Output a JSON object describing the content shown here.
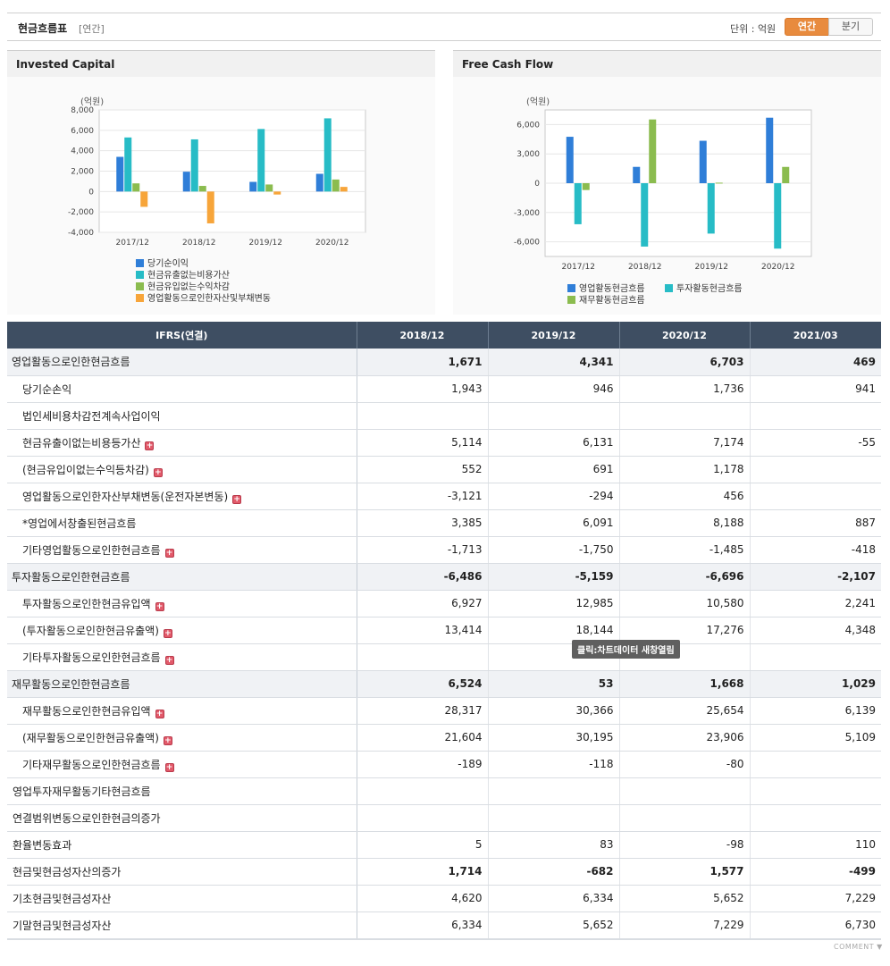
{
  "header": {
    "title": "현금흐름표",
    "subtitle": "[연간]",
    "unit": "단위 : 억원",
    "toggle_annual": "연간",
    "toggle_quarter": "분기"
  },
  "chart_data": [
    {
      "type": "bar",
      "title": "Invested Capital",
      "ylabel": "(억원)",
      "categories": [
        "2017/12",
        "2018/12",
        "2019/12",
        "2020/12"
      ],
      "ylim": [
        -4000,
        8000
      ],
      "yticks": [
        8000,
        6000,
        4000,
        2000,
        0,
        -2000,
        -4000
      ],
      "ytick_labels": [
        "8,000",
        "6,000",
        "4,000",
        "2,000",
        "0",
        "-2,000",
        "-4,000"
      ],
      "series": [
        {
          "name": "당기순이익",
          "color": "#2f7ed8",
          "values": [
            3400,
            1943,
            946,
            1736
          ]
        },
        {
          "name": "현금유출없는비용가산",
          "color": "#27bcc6",
          "values": [
            5300,
            5114,
            6131,
            7174
          ]
        },
        {
          "name": "현금유입없는수익차감",
          "color": "#8bbc4f",
          "values": [
            800,
            552,
            691,
            1178
          ]
        },
        {
          "name": "영업활동으로인한자산및부채변동",
          "color": "#f7a53a",
          "values": [
            -1500,
            -3121,
            -294,
            456
          ]
        }
      ],
      "grid": true,
      "legend": "bottom"
    },
    {
      "type": "bar",
      "title": "Free Cash Flow",
      "ylabel": "(억원)",
      "categories": [
        "2017/12",
        "2018/12",
        "2019/12",
        "2020/12"
      ],
      "ylim": [
        -7500,
        7500
      ],
      "yticks": [
        6000,
        3000,
        0,
        -3000,
        -6000
      ],
      "ytick_labels": [
        "6,000",
        "3,000",
        "0",
        "-3,000",
        "-6,000"
      ],
      "series": [
        {
          "name": "영업활동현금흐름",
          "color": "#2f7ed8",
          "values": [
            4750,
            1671,
            4341,
            6703
          ]
        },
        {
          "name": "투자활동현금흐름",
          "color": "#27bcc6",
          "values": [
            -4200,
            -6486,
            -5159,
            -6696
          ]
        },
        {
          "name": "재무활동현금흐름",
          "color": "#8bbc4f",
          "values": [
            -700,
            6524,
            53,
            1668
          ]
        }
      ],
      "grid": true,
      "legend": "bottom"
    }
  ],
  "table": {
    "head_label": "IFRS(연결)",
    "periods": [
      "2018/12",
      "2019/12",
      "2020/12",
      "2021/03"
    ],
    "rows": [
      {
        "label": "영업활동으로인한현금흐름",
        "kind": "main",
        "values": [
          "1,671",
          "4,341",
          "6,703",
          "469"
        ]
      },
      {
        "label": "당기순손익",
        "kind": "sub",
        "values": [
          "1,943",
          "946",
          "1,736",
          "941"
        ]
      },
      {
        "label": "법인세비용차감전계속사업이익",
        "kind": "sub",
        "values": [
          "",
          "",
          "",
          ""
        ]
      },
      {
        "label": "현금유출이없는비용등가산",
        "kind": "sub",
        "plus": true,
        "values": [
          "5,114",
          "6,131",
          "7,174",
          "-55"
        ]
      },
      {
        "label": "(현금유입이없는수익등차감)",
        "kind": "sub",
        "plus": true,
        "values": [
          "552",
          "691",
          "1,178",
          ""
        ]
      },
      {
        "label": "영업활동으로인한자산부채변동(운전자본변동)",
        "kind": "sub",
        "plus": true,
        "values": [
          "-3,121",
          "-294",
          "456",
          ""
        ]
      },
      {
        "label": "*영업에서창출된현금흐름",
        "kind": "sub",
        "values": [
          "3,385",
          "6,091",
          "8,188",
          "887"
        ]
      },
      {
        "label": "기타영업활동으로인한현금흐름",
        "kind": "sub",
        "plus": true,
        "values": [
          "-1,713",
          "-1,750",
          "-1,485",
          "-418"
        ]
      },
      {
        "label": "투자활동으로인한현금흐름",
        "kind": "main",
        "values": [
          "-6,486",
          "-5,159",
          "-6,696",
          "-2,107"
        ]
      },
      {
        "label": "투자활동으로인한현금유입액",
        "kind": "sub",
        "plus": true,
        "values": [
          "6,927",
          "12,985",
          "10,580",
          "2,241"
        ]
      },
      {
        "label": "(투자활동으로인한현금유출액)",
        "kind": "sub",
        "plus": true,
        "values": [
          "13,414",
          "18,144",
          "17,276",
          "4,348"
        ]
      },
      {
        "label": "기타투자활동으로인한현금흐름",
        "kind": "sub",
        "plus": true,
        "values": [
          "",
          "",
          "",
          ""
        ]
      },
      {
        "label": "재무활동으로인한현금흐름",
        "kind": "main",
        "values": [
          "6,524",
          "53",
          "1,668",
          "1,029"
        ]
      },
      {
        "label": "재무활동으로인한현금유입액",
        "kind": "sub",
        "plus": true,
        "values": [
          "28,317",
          "30,366",
          "25,654",
          "6,139"
        ]
      },
      {
        "label": "(재무활동으로인한현금유출액)",
        "kind": "sub",
        "plus": true,
        "values": [
          "21,604",
          "30,195",
          "23,906",
          "5,109"
        ]
      },
      {
        "label": "기타재무활동으로인한현금흐름",
        "kind": "sub",
        "plus": true,
        "values": [
          "-189",
          "-118",
          "-80",
          ""
        ]
      },
      {
        "label": "영업투자재무활동기타현금흐름",
        "kind": "flat",
        "values": [
          "",
          "",
          "",
          ""
        ]
      },
      {
        "label": "연결범위변동으로인한현금의증가",
        "kind": "flat",
        "values": [
          "",
          "",
          "",
          ""
        ]
      },
      {
        "label": "환율변동효과",
        "kind": "flat",
        "values": [
          "5",
          "83",
          "-98",
          "110"
        ]
      },
      {
        "label": "현금및현금성자산의증가",
        "kind": "flat",
        "bold": true,
        "values": [
          "1,714",
          "-682",
          "1,577",
          "-499"
        ]
      },
      {
        "label": "기초현금및현금성자산",
        "kind": "flat",
        "values": [
          "4,620",
          "6,334",
          "5,652",
          "7,229"
        ]
      },
      {
        "label": "기말현금및현금성자산",
        "kind": "flat",
        "values": [
          "6,334",
          "5,652",
          "7,229",
          "6,730"
        ]
      }
    ]
  },
  "tooltip": "클릭:차트데이터 새창열림",
  "comment": "COMMENT ▼"
}
